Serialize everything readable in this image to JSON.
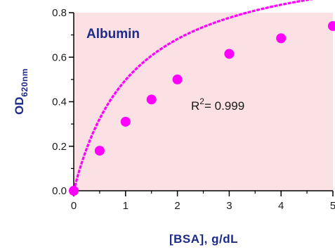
{
  "chart_data": {
    "type": "scatter",
    "title": "Albumin",
    "xlabel": "[BSA], g/dL",
    "ylabel_main": "OD",
    "ylabel_sub": "620nm",
    "annotation": {
      "prefix": "R",
      "sup": "2",
      "suffix": "= 0.999"
    },
    "xlim": [
      0,
      5
    ],
    "ylim": [
      0,
      0.8
    ],
    "xticks": [
      0,
      1,
      2,
      3,
      4,
      5
    ],
    "xtick_labels": [
      "0",
      "1",
      "2",
      "3",
      "4",
      "5"
    ],
    "yticks": [
      0.0,
      0.2,
      0.4,
      0.6,
      0.8
    ],
    "ytick_labels": [
      "0.0",
      "0.2",
      "0.4",
      "0.6",
      "0.8"
    ],
    "grid": false,
    "series": [
      {
        "x": [
          0,
          0.5,
          1.0,
          1.5,
          2.0,
          3.0,
          4.0,
          5.0
        ],
        "y": [
          0.0,
          0.18,
          0.31,
          0.41,
          0.5,
          0.615,
          0.685,
          0.74
        ]
      }
    ],
    "fit_curve": {
      "ymax": 1.08,
      "k": 1.17
    },
    "colors": {
      "plot_background": "#fbe0e4",
      "series": "#ff00ff",
      "axis": "#000000",
      "axis_title": "#1c2a8a"
    }
  }
}
